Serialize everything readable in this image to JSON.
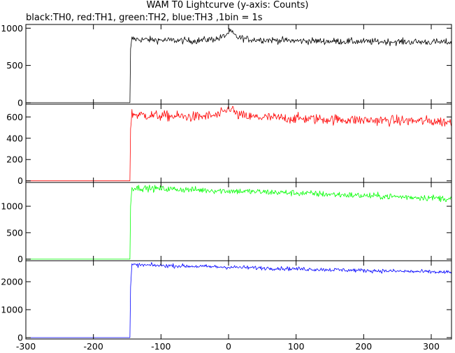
{
  "header": {
    "title": "WAM T0 Lightcurve (y-axis: Counts)",
    "subtitle": "black:TH0, red:TH1, green:TH2, blue:TH3 ,1bin = 1s"
  },
  "chart_data": [
    {
      "type": "line",
      "series": [
        {
          "name": "TH0",
          "color": "#000000"
        }
      ],
      "xlim": [
        -300,
        330
      ],
      "ylim": [
        -20,
        1050
      ],
      "yticks": [
        0,
        500,
        1000
      ],
      "xticks_shown": false,
      "trigger_x": -145,
      "pre_trigger_level": 0,
      "profile": [
        [
          -145,
          700
        ],
        [
          -143,
          860
        ],
        [
          -135,
          850
        ],
        [
          -100,
          840
        ],
        [
          -50,
          830
        ],
        [
          -15,
          860
        ],
        [
          -5,
          900
        ],
        [
          2,
          960
        ],
        [
          6,
          930
        ],
        [
          12,
          880
        ],
        [
          30,
          850
        ],
        [
          100,
          830
        ],
        [
          200,
          820
        ],
        [
          300,
          815
        ],
        [
          330,
          810
        ]
      ],
      "noise": 22
    },
    {
      "type": "line",
      "series": [
        {
          "name": "TH1",
          "color": "#ff0000"
        }
      ],
      "xlim": [
        -300,
        330
      ],
      "ylim": [
        -15,
        720
      ],
      "yticks": [
        0,
        200,
        400,
        600
      ],
      "xticks_shown": false,
      "trigger_x": -145,
      "pre_trigger_level": 0,
      "profile": [
        [
          -145,
          480
        ],
        [
          -143,
          630
        ],
        [
          -135,
          620
        ],
        [
          -100,
          610
        ],
        [
          -50,
          600
        ],
        [
          -15,
          615
        ],
        [
          -5,
          650
        ],
        [
          2,
          690
        ],
        [
          6,
          670
        ],
        [
          12,
          620
        ],
        [
          30,
          600
        ],
        [
          100,
          585
        ],
        [
          200,
          570
        ],
        [
          300,
          560
        ],
        [
          330,
          550
        ]
      ],
      "noise": 24
    },
    {
      "type": "line",
      "series": [
        {
          "name": "TH2",
          "color": "#00ff00"
        }
      ],
      "xlim": [
        -300,
        330
      ],
      "ylim": [
        -30,
        1450
      ],
      "yticks": [
        0,
        500,
        1000
      ],
      "xticks_shown": false,
      "trigger_x": -145,
      "pre_trigger_level": 0,
      "profile": [
        [
          -145,
          1000
        ],
        [
          -143,
          1350
        ],
        [
          -100,
          1330
        ],
        [
          0,
          1290
        ],
        [
          100,
          1250
        ],
        [
          200,
          1200
        ],
        [
          300,
          1160
        ],
        [
          330,
          1140
        ]
      ],
      "noise": 30
    },
    {
      "type": "line",
      "series": [
        {
          "name": "TH3",
          "color": "#0000ff"
        }
      ],
      "xlim": [
        -300,
        330
      ],
      "ylim": [
        -50,
        2750
      ],
      "yticks": [
        0,
        1000,
        2000
      ],
      "xticks_shown": true,
      "xticks": [
        -300,
        -200,
        -100,
        0,
        100,
        200,
        300
      ],
      "trigger_x": -145,
      "pre_trigger_level": 0,
      "profile": [
        [
          -145,
          1800
        ],
        [
          -143,
          2600
        ],
        [
          -100,
          2580
        ],
        [
          0,
          2520
        ],
        [
          100,
          2460
        ],
        [
          200,
          2400
        ],
        [
          300,
          2350
        ],
        [
          330,
          2330
        ]
      ],
      "noise": 35
    }
  ]
}
